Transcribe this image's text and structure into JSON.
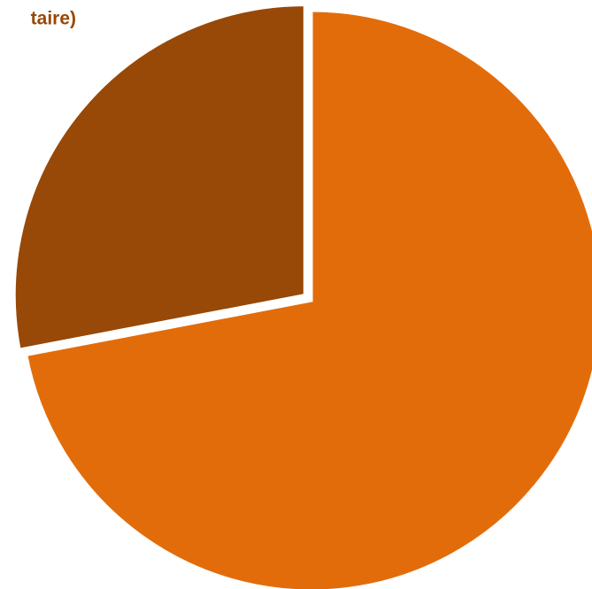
{
  "chart_data": {
    "type": "pie",
    "categories": [
      null,
      "taire)"
    ],
    "values": [
      72,
      28
    ],
    "colors": [
      "#e36c0a",
      "#984807"
    ],
    "exploded": [
      false,
      true
    ]
  }
}
